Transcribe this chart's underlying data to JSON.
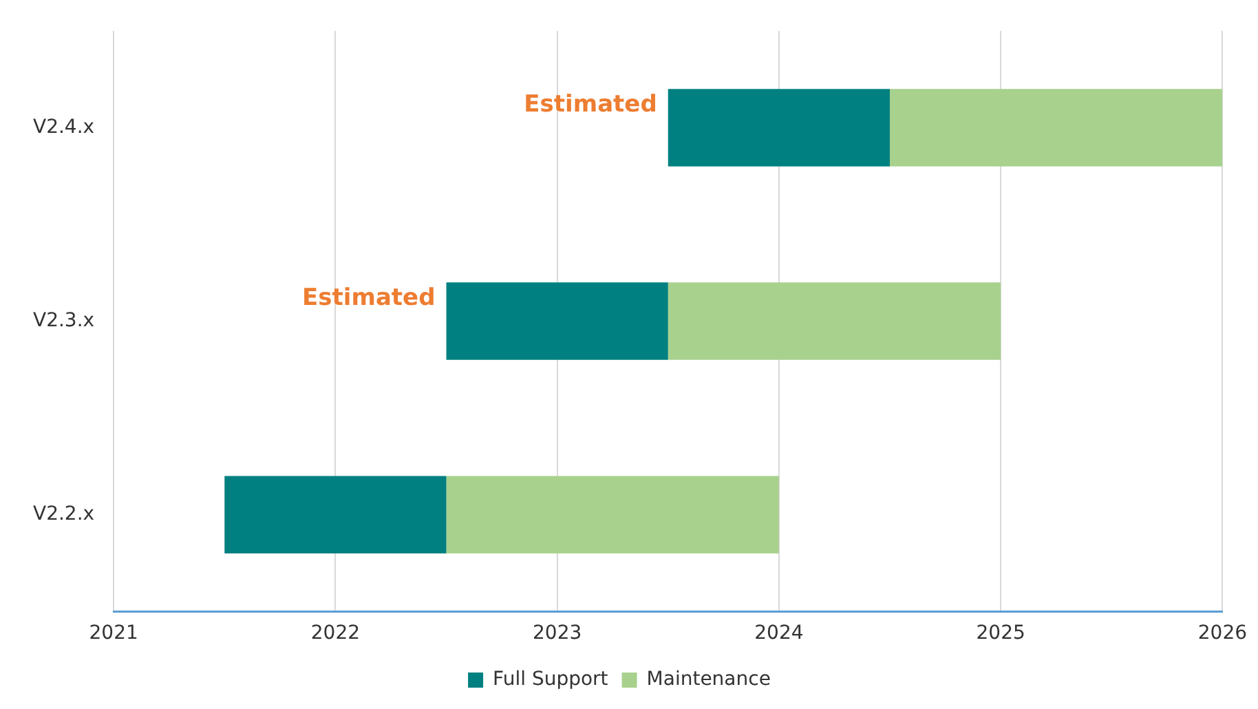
{
  "chart_data": {
    "type": "bar",
    "orientation": "horizontal",
    "categories": [
      "V2.4.x",
      "V2.3.x",
      "V2.2.x"
    ],
    "series": [
      {
        "name": "Full Support",
        "color": "#008080",
        "base": [
          2023.5,
          2022.5,
          2021.5
        ],
        "values": [
          1,
          1,
          1
        ]
      },
      {
        "name": "Maintenance",
        "color": "#a9d18e",
        "base": [
          2024.5,
          2023.5,
          2022.5
        ],
        "values": [
          1.5,
          1.5,
          1.5
        ]
      }
    ],
    "xlim": [
      2021,
      2026
    ],
    "xticks": [
      2021,
      2022,
      2023,
      2024,
      2025,
      2026
    ],
    "grid": "x",
    "legend": "bottom",
    "annotations": [
      "Estimated",
      "Estimated"
    ]
  }
}
